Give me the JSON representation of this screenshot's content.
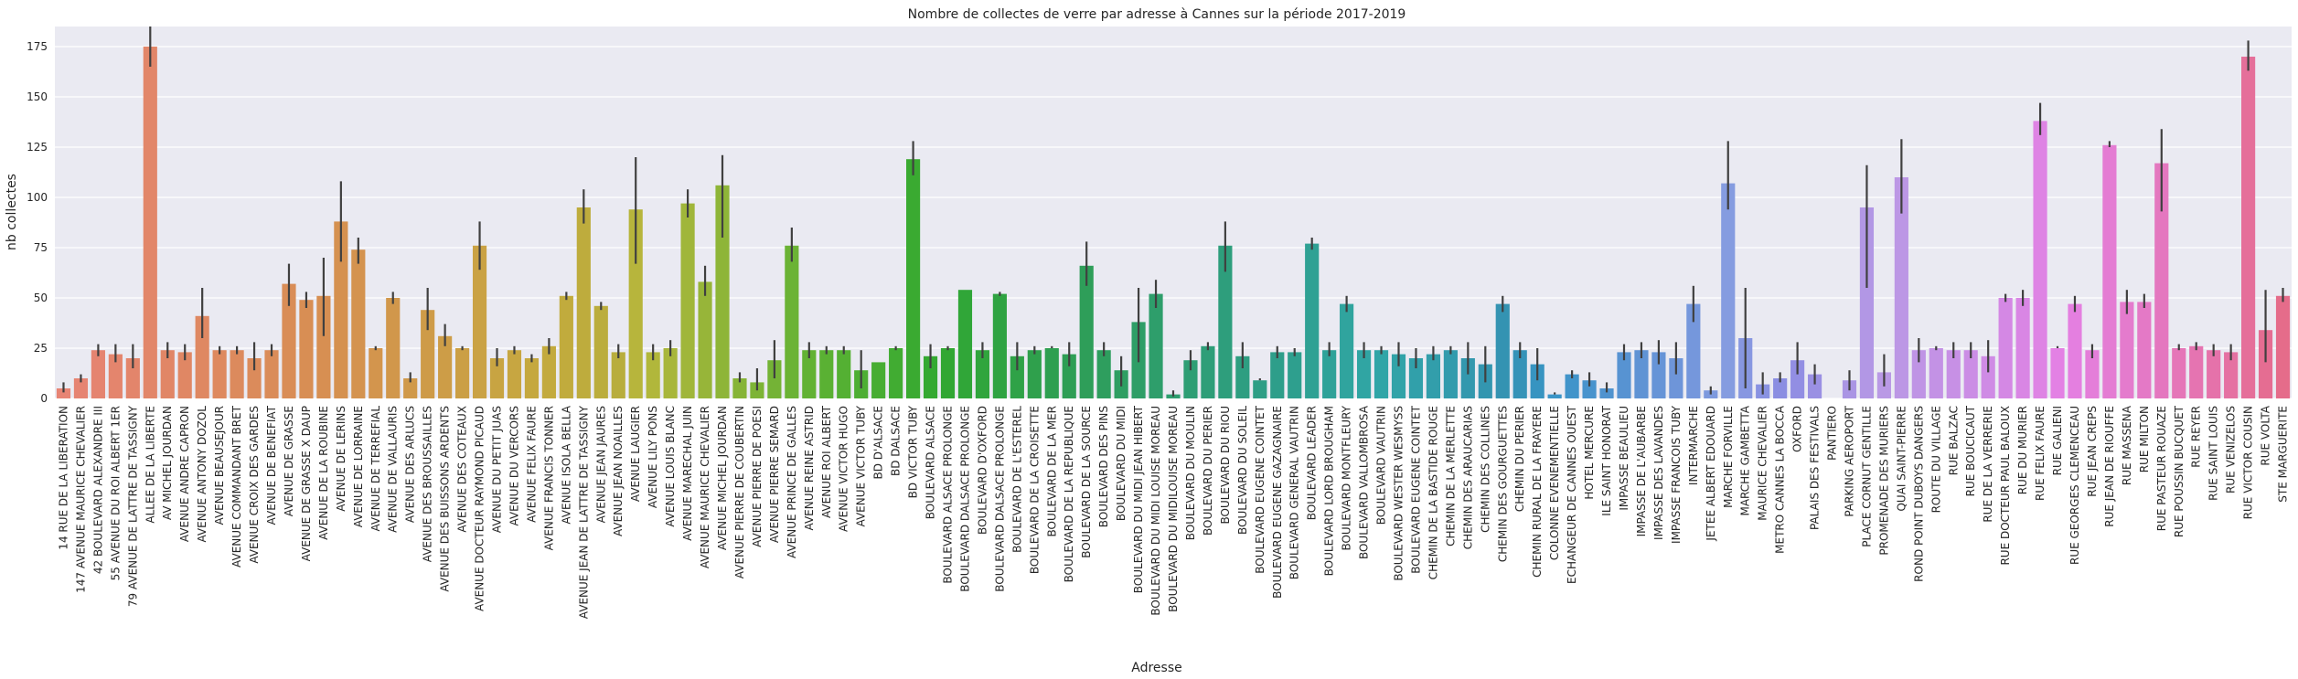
{
  "chart_data": {
    "type": "bar",
    "title": "Nombre de collectes de verre par adresse à Cannes sur la période 2017-2019",
    "xlabel": "Adresse",
    "ylabel": "nb collectes",
    "ylim": [
      0,
      185
    ],
    "yticks": [
      0,
      25,
      50,
      75,
      100,
      125,
      150,
      175
    ],
    "grid": true,
    "legend": "none",
    "background": "#eaeaf2",
    "error_bar_color": "#404040",
    "categories": [
      "14 RUE DE LA LIBERATION",
      "147 AVENUE MAURICE CHEVALIER",
      "42 BOULEVARD ALEXANDRE III",
      "55 AVENUE DU ROI ALBERT 1ER",
      "79 AVENUE DE LATTRE DE TASSIGNY",
      "ALLEE DE LA LIBERTE",
      "AV MICHEL JOURDAN",
      "AVENUE ANDRE CAPRON",
      "AVENUE ANTONY DOZOL",
      "AVENUE BEAUSEJOUR",
      "AVENUE COMMANDANT BRET",
      "AVENUE CROIX DES GARDES",
      "AVENUE DE BENEFIAT",
      "AVENUE DE GRASSE",
      "AVENUE DE GRASSE X DAUP",
      "AVENUE DE LA ROUBINE",
      "AVENUE DE LERINS",
      "AVENUE DE LORRAINE",
      "AVENUE DE TERREFIAL",
      "AVENUE DE VALLAURIS",
      "AVENUE DES ARLUCS",
      "AVENUE DES BROUSSAILLES",
      "AVENUE DES BUISSONS ARDENTS",
      "AVENUE DES COTEAUX",
      "AVENUE DOCTEUR RAYMOND PICAUD",
      "AVENUE DU PETIT JUAS",
      "AVENUE DU VERCORS",
      "AVENUE FELIX FAURE",
      "AVENUE FRANCIS TONNER",
      "AVENUE ISOLA BELLA",
      "AVENUE JEAN DE LATTRE DE TASSIGNY",
      "AVENUE JEAN JAURES",
      "AVENUE JEAN NOAILLES",
      "AVENUE LAUGIER",
      "AVENUE LILY PONS",
      "AVENUE LOUIS BLANC",
      "AVENUE MARECHAL JUIN",
      "AVENUE MAURICE CHEVALIER",
      "AVENUE MICHEL JOURDAN",
      "AVENUE PIERRE DE COUBERTIN",
      "AVENUE PIERRE DE POESI",
      "AVENUE PIERRE SEMARD",
      "AVENUE PRINCE DE GALLES",
      "AVENUE REINE ASTRID",
      "AVENUE ROI ALBERT",
      "AVENUE VICTOR HUGO",
      "AVENUE VICTOR TUBY",
      "BD D'ALSACE",
      "BD DALSACE",
      "BD VICTOR TUBY",
      "BOULEVARD ALSACE",
      "BOULEVARD ALSACE PROLONGE",
      "BOULEVARD DALSACE PROLONGE",
      "BOULEVARD D'OXFORD",
      "BOULEVARD DALSACE PROLONGE",
      "BOULEVARD DE L'ESTEREL",
      "BOULEVARD DE LA CROISETTE",
      "BOULEVARD DE LA MER",
      "BOULEVARD DE LA REPUBLIQUE",
      "BOULEVARD DE LA SOURCE",
      "BOULEVARD DES PINS",
      "BOULEVARD DU MIDI",
      "BOULEVARD DU MIDI JEAN HIBERT",
      "BOULEVARD DU MIDI LOUISE MOREAU",
      "BOULEVARD DU MIDILOUISE MOREAU",
      "BOULEVARD DU MOULIN",
      "BOULEVARD DU PERIER",
      "BOULEVARD DU RIOU",
      "BOULEVARD DU SOLEIL",
      "BOULEVARD EUGENE COINTET",
      "BOULEVARD EUGENE GAZAGNAIRE",
      "BOULEVARD GENERAL VAUTRIN",
      "BOULEVARD LEADER",
      "BOULEVARD LORD BROUGHAM",
      "BOULEVARD MONTFLEURY",
      "BOULEVARD VALLOMBROSA",
      "BOULEVARD VAUTRIN",
      "BOULEVARD WESTER WESMYSS",
      "BOULEVARD EUGENE COINTET",
      "CHEMIN DE LA BASTIDE ROUGE",
      "CHEMIN DE LA MERLETTE",
      "CHEMIN DES ARAUCARIAS",
      "CHEMIN DES COLLINES",
      "CHEMIN DES GOURGUETTES",
      "CHEMIN DU PERIER",
      "CHEMIN RURAL DE LA FRAYERE",
      "COLONNE EVENEMENTIELLE",
      "ECHANGEUR DE CANNES OUEST",
      "HOTEL MERCURE",
      "ILE SAINT HONORAT",
      "IMPASSE BEAULIEU",
      "IMPASSE DE L'AUBARBE",
      "IMPASSE DES LAVANDES",
      "IMPASSE FRANCOIS TUBY",
      "INTERMARCHE",
      "JETEE ALBERT EDOUARD",
      "MARCHE FORVILLE",
      "MARCHE GAMBETTA",
      "MAURICE CHEVALIER",
      "METRO CANNES LA BOCCA",
      "OXFORD",
      "PALAIS DES FESTIVALS",
      "PANTIERO",
      "PARKING AEROPORT",
      "PLACE CORNUT GENTILLE",
      "PROMENADE DES MURIERS",
      "QUAI SAINT-PIERRE",
      "ROND POINT DUBOYS DANGERS",
      "ROUTE DU VILLAGE",
      "RUE BALZAC",
      "RUE BOUCICAUT",
      "RUE DE LA VERRERIE",
      "RUE DOCTEUR PAUL BALOUX",
      "RUE DU MURIER",
      "RUE FELIX FAURE",
      "RUE GALIENI",
      "RUE GEORGES CLEMENCEAU",
      "RUE JEAN CREPS",
      "RUE JEAN DE RIOUFFE",
      "RUE MASSENA",
      "RUE MILTON",
      "RUE PASTEUR ROUAZE",
      "RUE POUSSIN BUCQUET",
      "RUE REYER",
      "RUE SAINT LOUIS",
      "RUE VENIZELOS",
      "RUE VICTOR COUSIN",
      "RUE VOLTA",
      "STE MARGUERITE"
    ],
    "values": [
      5,
      10,
      24,
      22,
      20,
      175,
      24,
      23,
      41,
      24,
      24,
      20,
      24,
      57,
      49,
      51,
      88,
      74,
      25,
      50,
      10,
      44,
      31,
      25,
      76,
      20,
      24,
      20,
      26,
      51,
      95,
      46,
      23,
      94,
      23,
      25,
      97,
      58,
      106,
      10,
      8,
      19,
      76,
      24,
      24,
      24,
      14,
      18,
      25,
      119,
      21,
      25,
      54,
      24,
      52,
      21,
      24,
      25,
      22,
      66,
      24,
      14,
      38,
      52,
      2,
      19,
      26,
      76,
      21,
      9,
      23,
      23,
      77,
      24,
      47,
      24,
      24,
      22,
      20,
      22,
      24,
      20,
      17,
      47,
      24,
      17,
      2,
      12,
      9,
      5,
      23,
      24,
      23,
      20,
      47,
      4,
      107,
      30,
      7,
      10,
      19,
      12,
      0,
      9,
      95,
      13,
      110,
      24,
      25,
      24,
      24,
      21,
      50,
      50,
      138,
      25,
      47,
      24,
      126,
      48,
      48,
      117,
      25,
      26,
      24,
      23,
      170,
      34,
      51
    ],
    "error_low": [
      3,
      8,
      21,
      18,
      15,
      165,
      20,
      19,
      30,
      22,
      22,
      14,
      21,
      46,
      45,
      31,
      68,
      67,
      24,
      47,
      8,
      34,
      26,
      24,
      64,
      16,
      22,
      18,
      22,
      49,
      87,
      44,
      20,
      67,
      19,
      21,
      90,
      51,
      80,
      8,
      4,
      10,
      68,
      20,
      22,
      22,
      5,
      18,
      24,
      111,
      15,
      24,
      54,
      20,
      51,
      14,
      22,
      25,
      16,
      56,
      21,
      6,
      18,
      45,
      1,
      14,
      24,
      63,
      15,
      9,
      20,
      21,
      74,
      21,
      43,
      20,
      22,
      16,
      15,
      19,
      22,
      12,
      8,
      43,
      20,
      9,
      2,
      10,
      6,
      3,
      19,
      20,
      17,
      12,
      38,
      2,
      94,
      5,
      2,
      8,
      12,
      7,
      0,
      4,
      55,
      6,
      92,
      18,
      24,
      20,
      20,
      13,
      48,
      46,
      131,
      25,
      43,
      20,
      125,
      42,
      45,
      93,
      24,
      24,
      21,
      19,
      163,
      18,
      48
    ],
    "error_high": [
      8,
      12,
      27,
      27,
      27,
      185,
      28,
      27,
      55,
      26,
      26,
      28,
      27,
      67,
      53,
      70,
      108,
      80,
      26,
      53,
      13,
      55,
      37,
      26,
      88,
      25,
      26,
      22,
      30,
      53,
      104,
      48,
      27,
      120,
      27,
      29,
      104,
      66,
      121,
      13,
      15,
      29,
      85,
      28,
      26,
      26,
      24,
      18,
      26,
      128,
      27,
      26,
      54,
      28,
      53,
      28,
      26,
      26,
      28,
      78,
      28,
      21,
      55,
      59,
      4,
      24,
      28,
      88,
      28,
      10,
      26,
      25,
      80,
      28,
      51,
      28,
      26,
      28,
      25,
      26,
      26,
      28,
      26,
      51,
      28,
      25,
      3,
      14,
      13,
      8,
      27,
      28,
      29,
      28,
      56,
      6,
      128,
      55,
      13,
      13,
      28,
      17,
      0,
      14,
      116,
      22,
      129,
      30,
      26,
      28,
      28,
      29,
      52,
      54,
      147,
      26,
      51,
      27,
      128,
      54,
      52,
      134,
      27,
      28,
      27,
      27,
      178,
      54,
      55
    ]
  }
}
